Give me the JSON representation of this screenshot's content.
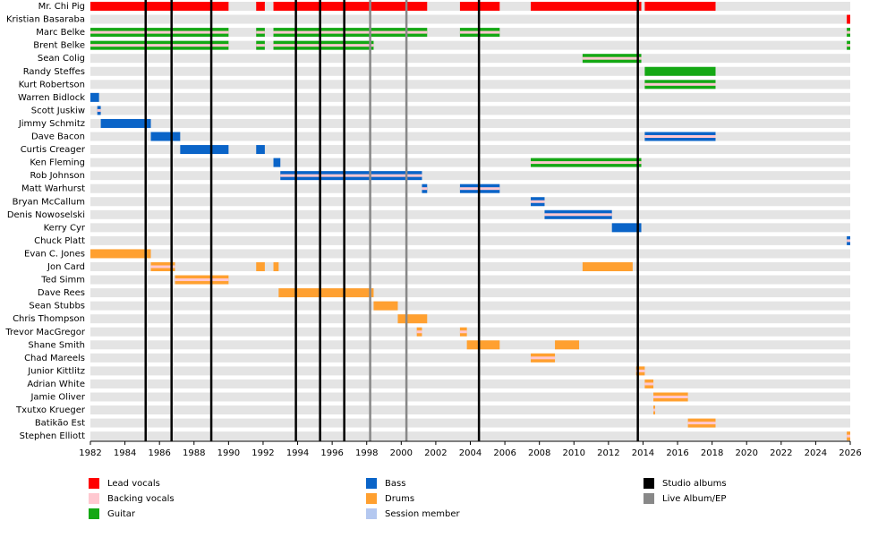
{
  "chart_data": {
    "type": "timeline",
    "xlim": [
      1982,
      2026
    ],
    "xticks": [
      1982,
      1984,
      1986,
      1988,
      1990,
      1992,
      1994,
      1996,
      1998,
      2000,
      2002,
      2004,
      2006,
      2008,
      2010,
      2012,
      2014,
      2016,
      2018,
      2020,
      2022,
      2024,
      2026
    ],
    "roles": [
      {
        "name": "Lead vocals",
        "color": "#ff0000"
      },
      {
        "name": "Backing vocals",
        "color": "#ffc8d0"
      },
      {
        "name": "Guitar",
        "color": "#14a814"
      },
      {
        "name": "Bass",
        "color": "#0a64c8"
      },
      {
        "name": "Drums",
        "color": "#ffa030"
      },
      {
        "name": "Session member",
        "color": "#b4c8f0"
      }
    ],
    "events": [
      {
        "name": "Studio albums",
        "color": "#000000",
        "x": [
          1985.2,
          1986.7,
          1989.0,
          1993.9,
          1995.3,
          1996.7,
          2004.5,
          2013.7
        ]
      },
      {
        "name": "Live Album/EP",
        "color": "#888888",
        "x": [
          1998.2,
          2000.3
        ]
      }
    ],
    "members": [
      {
        "name": "Mr. Chi Pig",
        "bars": [
          {
            "start": 1982,
            "end": 1990,
            "role": 0
          },
          {
            "start": 1991.6,
            "end": 1992.1,
            "role": 0
          },
          {
            "start": 1992.6,
            "end": 2001.5,
            "role": 0
          },
          {
            "start": 2003.4,
            "end": 2005.7,
            "role": 0
          },
          {
            "start": 2007.5,
            "end": 2013.9,
            "role": 0
          },
          {
            "start": 2014.1,
            "end": 2018.2,
            "role": 0
          }
        ]
      },
      {
        "name": "Kristian Basaraba",
        "bars": [
          {
            "start": 2025.8,
            "end": 2026,
            "role": 0
          }
        ]
      },
      {
        "name": "Marc Belke",
        "bars": [
          {
            "start": 1982,
            "end": 1990,
            "role": 2,
            "also": 1
          },
          {
            "start": 1991.6,
            "end": 1992.1,
            "role": 2,
            "also": 1
          },
          {
            "start": 1992.6,
            "end": 2001.5,
            "role": 2,
            "also": 1
          },
          {
            "start": 2003.4,
            "end": 2005.7,
            "role": 2,
            "also": 1
          },
          {
            "start": 2025.8,
            "end": 2026,
            "role": 2,
            "also": 1
          }
        ]
      },
      {
        "name": "Brent Belke",
        "bars": [
          {
            "start": 1982,
            "end": 1990,
            "role": 2,
            "also": 1
          },
          {
            "start": 1991.6,
            "end": 1992.1,
            "role": 2,
            "also": 1
          },
          {
            "start": 1992.6,
            "end": 1998.4,
            "role": 2,
            "also": 1
          },
          {
            "start": 2025.8,
            "end": 2026,
            "role": 2,
            "also": 1
          }
        ]
      },
      {
        "name": "Sean Colig",
        "bars": [
          {
            "start": 2010.5,
            "end": 2013.9,
            "role": 2,
            "also": 1
          }
        ]
      },
      {
        "name": "Randy Steffes",
        "bars": [
          {
            "start": 2014.1,
            "end": 2018.2,
            "role": 2
          }
        ]
      },
      {
        "name": "Kurt Robertson",
        "bars": [
          {
            "start": 2014.1,
            "end": 2018.2,
            "role": 2,
            "also": 1
          }
        ]
      },
      {
        "name": "Warren Bidlock",
        "bars": [
          {
            "start": 1982,
            "end": 1982.5,
            "role": 3
          }
        ]
      },
      {
        "name": "Scott Juskiw",
        "bars": [
          {
            "start": 1982.4,
            "end": 1982.6,
            "role": 3,
            "also": 1
          }
        ]
      },
      {
        "name": "Jimmy Schmitz",
        "bars": [
          {
            "start": 1982.6,
            "end": 1985.5,
            "role": 3
          }
        ]
      },
      {
        "name": "Dave Bacon",
        "bars": [
          {
            "start": 1985.5,
            "end": 1987.2,
            "role": 3
          },
          {
            "start": 2014.1,
            "end": 2018.2,
            "role": 3,
            "also": 1
          }
        ]
      },
      {
        "name": "Curtis Creager",
        "bars": [
          {
            "start": 1987.2,
            "end": 1990,
            "role": 3
          },
          {
            "start": 1991.6,
            "end": 1992.1,
            "role": 3
          }
        ]
      },
      {
        "name": "Ken Fleming",
        "bars": [
          {
            "start": 1992.6,
            "end": 1993.0,
            "role": 3
          },
          {
            "start": 2007.5,
            "end": 2013.9,
            "role": 2,
            "also": 1
          }
        ]
      },
      {
        "name": "Rob Johnson",
        "bars": [
          {
            "start": 1993.0,
            "end": 2001.2,
            "role": 3,
            "also": 1
          }
        ]
      },
      {
        "name": "Matt Warhurst",
        "bars": [
          {
            "start": 2001.2,
            "end": 2001.5,
            "role": 3,
            "also": 1
          },
          {
            "start": 2003.4,
            "end": 2005.7,
            "role": 3,
            "also": 1
          }
        ]
      },
      {
        "name": "Bryan McCallum",
        "bars": [
          {
            "start": 2007.5,
            "end": 2008.3,
            "role": 3,
            "also": 1
          }
        ]
      },
      {
        "name": "Denis Nowoselski",
        "bars": [
          {
            "start": 2008.3,
            "end": 2012.2,
            "role": 3,
            "also": 1
          }
        ]
      },
      {
        "name": "Kerry Cyr",
        "bars": [
          {
            "start": 2012.2,
            "end": 2013.9,
            "role": 3
          }
        ]
      },
      {
        "name": "Chuck Platt",
        "bars": [
          {
            "start": 2025.8,
            "end": 2026,
            "role": 3,
            "also": 1
          }
        ]
      },
      {
        "name": "Evan C. Jones",
        "bars": [
          {
            "start": 1982,
            "end": 1985.5,
            "role": 4
          }
        ]
      },
      {
        "name": "Jon Card",
        "bars": [
          {
            "start": 1985.5,
            "end": 1986.9,
            "role": 4,
            "also": 1
          },
          {
            "start": 1991.6,
            "end": 1992.1,
            "role": 4
          },
          {
            "start": 1992.6,
            "end": 1992.9,
            "role": 4
          },
          {
            "start": 2010.5,
            "end": 2013.4,
            "role": 4
          }
        ]
      },
      {
        "name": "Ted Simm",
        "bars": [
          {
            "start": 1986.9,
            "end": 1990,
            "role": 4,
            "also": 1
          }
        ]
      },
      {
        "name": "Dave Rees",
        "bars": [
          {
            "start": 1992.9,
            "end": 1998.4,
            "role": 4
          }
        ]
      },
      {
        "name": "Sean Stubbs",
        "bars": [
          {
            "start": 1998.4,
            "end": 1999.8,
            "role": 4
          }
        ]
      },
      {
        "name": "Chris Thompson",
        "bars": [
          {
            "start": 1999.8,
            "end": 2001.5,
            "role": 4
          }
        ]
      },
      {
        "name": "Trevor MacGregor",
        "bars": [
          {
            "start": 2000.9,
            "end": 2001.2,
            "role": 4,
            "also": 1
          },
          {
            "start": 2003.4,
            "end": 2003.8,
            "role": 4,
            "also": 1
          }
        ]
      },
      {
        "name": "Shane Smith",
        "bars": [
          {
            "start": 2003.8,
            "end": 2005.7,
            "role": 4
          },
          {
            "start": 2008.9,
            "end": 2010.3,
            "role": 4
          }
        ]
      },
      {
        "name": "Chad Mareels",
        "bars": [
          {
            "start": 2007.5,
            "end": 2008.9,
            "role": 4,
            "also": 1
          }
        ]
      },
      {
        "name": "Junior Kittlitz",
        "bars": [
          {
            "start": 2013.6,
            "end": 2014.1,
            "role": 4,
            "also": 1
          }
        ]
      },
      {
        "name": "Adrian White",
        "bars": [
          {
            "start": 2014.1,
            "end": 2014.6,
            "role": 4,
            "also": 1
          }
        ]
      },
      {
        "name": "Jamie Oliver",
        "bars": [
          {
            "start": 2014.6,
            "end": 2016.6,
            "role": 4,
            "also": 1
          }
        ]
      },
      {
        "name": "Txutxo Krueger",
        "bars": [
          {
            "start": 2014.6,
            "end": 2014.7,
            "role": 4,
            "also": 1
          }
        ]
      },
      {
        "name": "Batikão Est",
        "bars": [
          {
            "start": 2016.6,
            "end": 2018.2,
            "role": 4,
            "also": 1
          }
        ]
      },
      {
        "name": "Stephen Elliott",
        "bars": [
          {
            "start": 2025.8,
            "end": 2026,
            "role": 4,
            "also": 1
          }
        ]
      }
    ]
  }
}
